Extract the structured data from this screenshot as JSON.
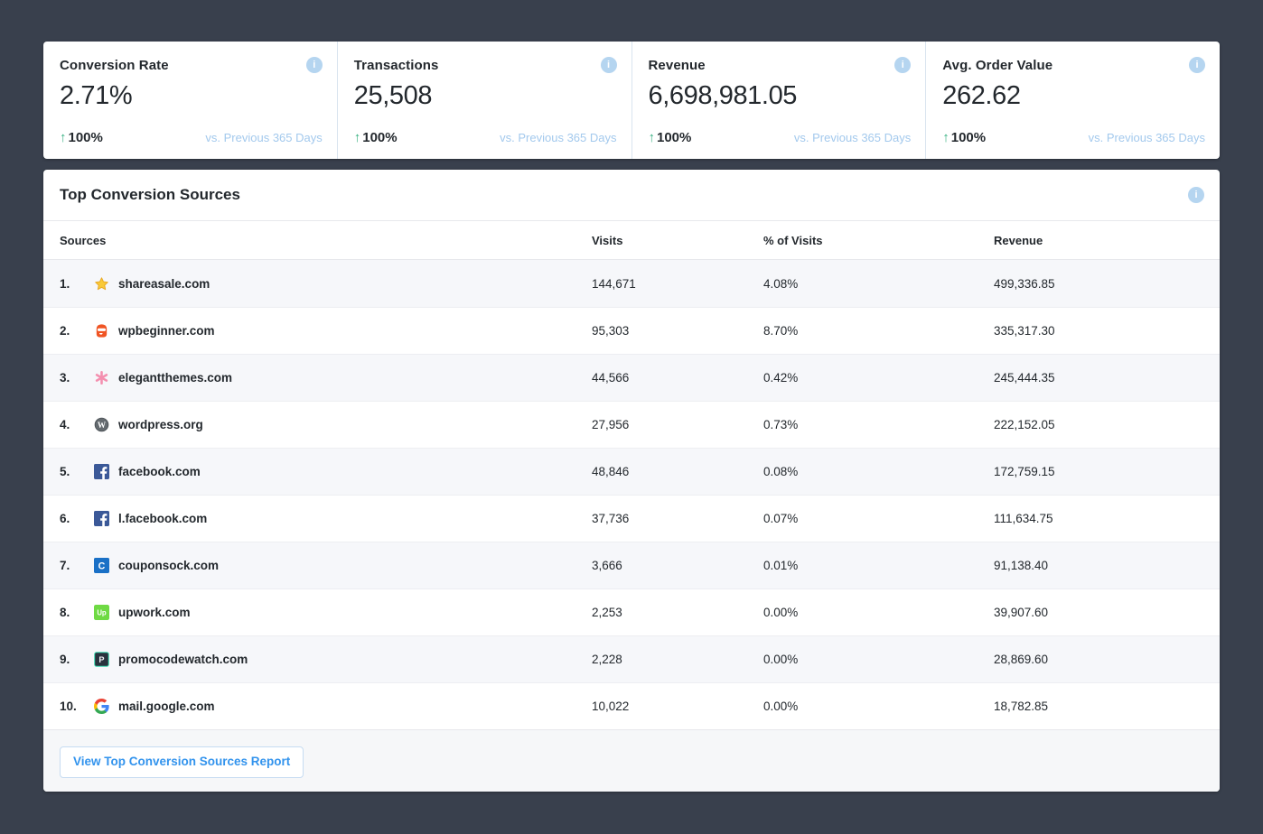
{
  "colors": {
    "page_bg": "#39404d",
    "card_bg": "#ffffff",
    "accent_blue": "#3293ed",
    "light_blue_text": "#a3c9ed",
    "positive_green": "#38b182",
    "info_icon_bg": "#b5d5f0",
    "row_alt_bg": "#f6f7fa",
    "text_dark": "#23282d"
  },
  "glyphs": {
    "up_arrow": "↑",
    "info": "i"
  },
  "metric_cards": [
    {
      "label": "Conversion Rate",
      "value": "2.71%",
      "change": "100%",
      "change_direction": "up",
      "compare_label": "vs. Previous 365 Days"
    },
    {
      "label": "Transactions",
      "value": "25,508",
      "change": "100%",
      "change_direction": "up",
      "compare_label": "vs. Previous 365 Days"
    },
    {
      "label": "Revenue",
      "value": "6,698,981.05",
      "change": "100%",
      "change_direction": "up",
      "compare_label": "vs. Previous 365 Days"
    },
    {
      "label": "Avg. Order Value",
      "value": "262.62",
      "change": "100%",
      "change_direction": "up",
      "compare_label": "vs. Previous 365 Days"
    }
  ],
  "sources_panel": {
    "title": "Top Conversion Sources",
    "columns": {
      "sources": "Sources",
      "visits": "Visits",
      "pct_visits": "% of Visits",
      "revenue": "Revenue"
    },
    "rows": [
      {
        "rank": "1.",
        "icon": "shareasale-favicon",
        "source": "shareasale.com",
        "visits": "144,671",
        "pct_visits": "4.08%",
        "revenue": "499,336.85"
      },
      {
        "rank": "2.",
        "icon": "wpbeginner-favicon",
        "source": "wpbeginner.com",
        "visits": "95,303",
        "pct_visits": "8.70%",
        "revenue": "335,317.30"
      },
      {
        "rank": "3.",
        "icon": "elegantthemes-favicon",
        "source": "elegantthemes.com",
        "visits": "44,566",
        "pct_visits": "0.42%",
        "revenue": "245,444.35"
      },
      {
        "rank": "4.",
        "icon": "wordpress-favicon",
        "source": "wordpress.org",
        "visits": "27,956",
        "pct_visits": "0.73%",
        "revenue": "222,152.05"
      },
      {
        "rank": "5.",
        "icon": "facebook-favicon",
        "source": "facebook.com",
        "visits": "48,846",
        "pct_visits": "0.08%",
        "revenue": "172,759.15"
      },
      {
        "rank": "6.",
        "icon": "facebook-favicon",
        "source": "l.facebook.com",
        "visits": "37,736",
        "pct_visits": "0.07%",
        "revenue": "111,634.75"
      },
      {
        "rank": "7.",
        "icon": "couponsock-favicon",
        "source": "couponsock.com",
        "visits": "3,666",
        "pct_visits": "0.01%",
        "revenue": "91,138.40"
      },
      {
        "rank": "8.",
        "icon": "upwork-favicon",
        "source": "upwork.com",
        "visits": "2,253",
        "pct_visits": "0.00%",
        "revenue": "39,907.60"
      },
      {
        "rank": "9.",
        "icon": "promocodewatch-favicon",
        "source": "promocodewatch.com",
        "visits": "2,228",
        "pct_visits": "0.00%",
        "revenue": "28,869.60"
      },
      {
        "rank": "10.",
        "icon": "google-favicon",
        "source": "mail.google.com",
        "visits": "10,022",
        "pct_visits": "0.00%",
        "revenue": "18,782.85"
      }
    ],
    "footer_button": "View Top Conversion Sources Report"
  }
}
